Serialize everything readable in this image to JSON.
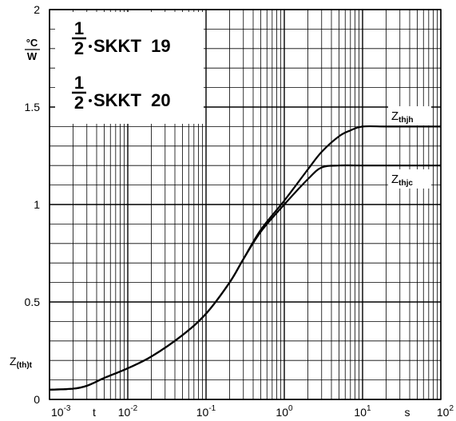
{
  "chart_data": {
    "type": "line",
    "title_lines": [
      {
        "prefix_num": "1",
        "prefix_den": "2",
        "text": "SKKT  19"
      },
      {
        "prefix_num": "1",
        "prefix_den": "2",
        "text": "SKKT  20"
      }
    ],
    "y_unit": {
      "num": "°C",
      "den": "W"
    },
    "y_label": {
      "main": "Z",
      "sub": "(th)t"
    },
    "x_label": "t",
    "x_unit": "s",
    "x_scale": "log",
    "xlim": [
      0.001,
      100
    ],
    "ylim": [
      0,
      2
    ],
    "x_ticks": [
      {
        "base": "10",
        "exp": "-3"
      },
      {
        "base": "10",
        "exp": "-2"
      },
      {
        "base": "10",
        "exp": "-1"
      },
      {
        "base": "10",
        "exp": "0"
      },
      {
        "base": "10",
        "exp": "1"
      },
      {
        "base": "10",
        "exp": "2"
      }
    ],
    "y_ticks": [
      "0",
      "0.5",
      "1",
      "1.5",
      "2"
    ],
    "grid": true,
    "series": [
      {
        "name_main": "Z",
        "name_sub": "thjh",
        "x": [
          0.001,
          0.002,
          0.003,
          0.005,
          0.01,
          0.02,
          0.05,
          0.1,
          0.2,
          0.3,
          0.5,
          1,
          2,
          3,
          5,
          7,
          10,
          20,
          50,
          100
        ],
        "y": [
          0.05,
          0.055,
          0.07,
          0.11,
          0.16,
          0.22,
          0.33,
          0.44,
          0.6,
          0.72,
          0.87,
          1.02,
          1.18,
          1.27,
          1.35,
          1.38,
          1.4,
          1.4,
          1.4,
          1.4
        ]
      },
      {
        "name_main": "Z",
        "name_sub": "thjc",
        "x": [
          0.001,
          0.002,
          0.003,
          0.005,
          0.01,
          0.02,
          0.05,
          0.1,
          0.2,
          0.3,
          0.5,
          1,
          2,
          3,
          5,
          10,
          20,
          50,
          100
        ],
        "y": [
          0.05,
          0.055,
          0.07,
          0.11,
          0.16,
          0.22,
          0.33,
          0.44,
          0.6,
          0.72,
          0.86,
          1.0,
          1.13,
          1.19,
          1.2,
          1.2,
          1.2,
          1.2,
          1.2
        ]
      }
    ]
  }
}
